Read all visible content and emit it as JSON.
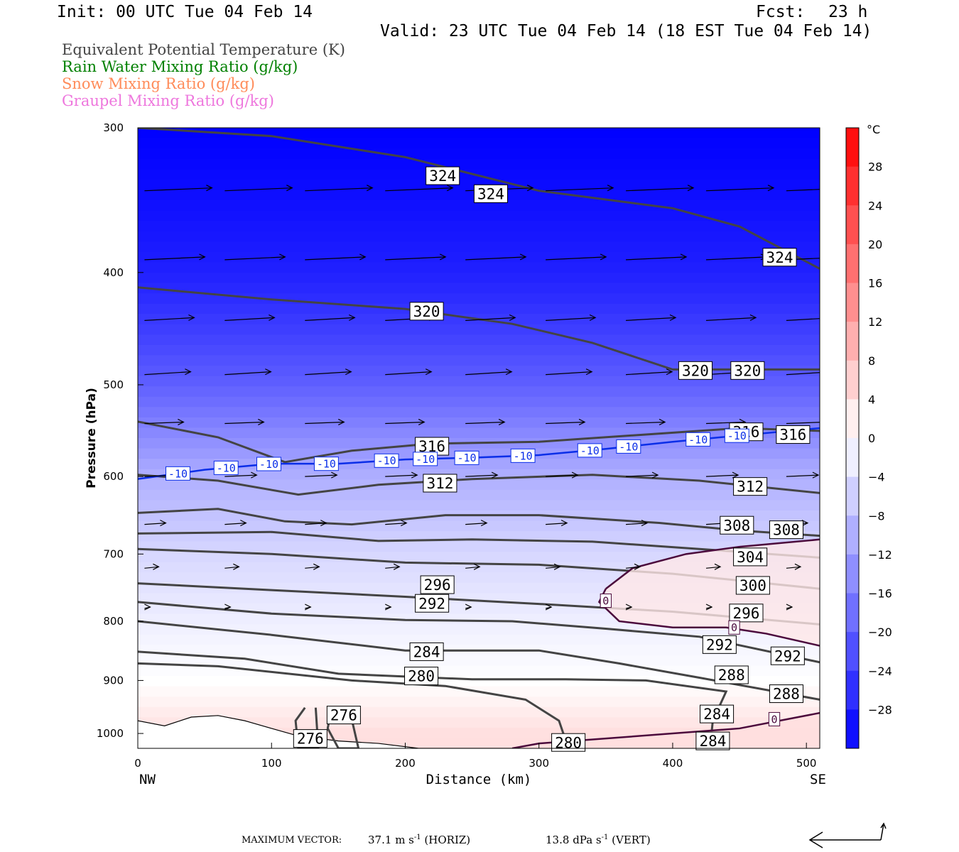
{
  "header": {
    "init": "Init: 00 UTC Tue 04 Feb 14",
    "fcst_label": "Fcst:",
    "fcst_value": "23 h",
    "valid": "Valid: 23 UTC Tue 04 Feb 14 (18 EST Tue 04 Feb 14)"
  },
  "legend": [
    {
      "label": "Equivalent Potential Temperature (K)",
      "color": "#444444"
    },
    {
      "label": "Rain Water Mixing Ratio (g/kg)",
      "color": "#008000"
    },
    {
      "label": "Snow Mixing Ratio (g/kg)",
      "color": "#ff8c5a"
    },
    {
      "label": "Graupel Mixing Ratio (g/kg)",
      "color": "#ee77dd"
    }
  ],
  "chart_data": {
    "type": "heatmap",
    "xlabel": "Distance (km)",
    "ylabel": "Pressure (hPa)",
    "xlim": [
      0,
      510
    ],
    "ylim": [
      1030,
      300
    ],
    "y_log_scale": true,
    "x_ticks": [
      0,
      100,
      200,
      300,
      400,
      500
    ],
    "y_ticks": [
      300,
      400,
      500,
      600,
      700,
      800,
      900,
      1000
    ],
    "x_end_labels": {
      "left": "NW",
      "right": "SE"
    },
    "colorbar": {
      "unit": "°C",
      "range": [
        -32,
        32
      ],
      "step": 4,
      "tick_labels": [
        28,
        24,
        20,
        16,
        12,
        8,
        4,
        0,
        -4,
        -8,
        -12,
        -16,
        -20,
        -24,
        -28
      ],
      "cold_color": "#0000ff",
      "zero_color": "#ffffff",
      "warm_color": "#ff0000"
    },
    "temperature_field_approx": [
      {
        "p": 300,
        "t": -32
      },
      {
        "p": 400,
        "t": -28
      },
      {
        "p": 500,
        "t": -20
      },
      {
        "p": 600,
        "t": -10
      },
      {
        "p": 700,
        "t": -5
      },
      {
        "p": 800,
        "t": -2
      },
      {
        "p": 900,
        "t": 0
      },
      {
        "p": 1000,
        "t": 4
      }
    ],
    "theta_e_contours": [
      {
        "value": 324,
        "points": [
          [
            0,
            300
          ],
          [
            100,
            305
          ],
          [
            200,
            318
          ],
          [
            300,
            340
          ],
          [
            400,
            352
          ],
          [
            450,
            365
          ],
          [
            510,
            397
          ]
        ]
      },
      {
        "value": 320,
        "points": [
          [
            0,
            412
          ],
          [
            100,
            422
          ],
          [
            200,
            430
          ],
          [
            280,
            443
          ],
          [
            340,
            460
          ],
          [
            400,
            485
          ],
          [
            510,
            485
          ]
        ]
      },
      {
        "value": 316,
        "points": [
          [
            0,
            538
          ],
          [
            60,
            555
          ],
          [
            110,
            583
          ],
          [
            160,
            570
          ],
          [
            220,
            562
          ],
          [
            300,
            560
          ],
          [
            380,
            552
          ],
          [
            450,
            545
          ],
          [
            510,
            548
          ]
        ]
      },
      {
        "value": 312,
        "points": [
          [
            0,
            598
          ],
          [
            60,
            605
          ],
          [
            120,
            622
          ],
          [
            180,
            610
          ],
          [
            250,
            603
          ],
          [
            340,
            598
          ],
          [
            420,
            605
          ],
          [
            510,
            620
          ]
        ]
      },
      {
        "value": 308,
        "points": [
          [
            0,
            645
          ],
          [
            60,
            640
          ],
          [
            110,
            656
          ],
          [
            160,
            660
          ],
          [
            230,
            648
          ],
          [
            300,
            648
          ],
          [
            390,
            658
          ],
          [
            450,
            668
          ],
          [
            510,
            675
          ]
        ]
      },
      {
        "value": 304,
        "points": [
          [
            0,
            672
          ],
          [
            100,
            670
          ],
          [
            180,
            682
          ],
          [
            250,
            680
          ],
          [
            340,
            683
          ],
          [
            420,
            693
          ],
          [
            510,
            705
          ]
        ]
      },
      {
        "value": 300,
        "points": [
          [
            0,
            693
          ],
          [
            100,
            700
          ],
          [
            200,
            712
          ],
          [
            300,
            715
          ],
          [
            400,
            728
          ],
          [
            510,
            750
          ]
        ]
      },
      {
        "value": 296,
        "points": [
          [
            0,
            742
          ],
          [
            100,
            752
          ],
          [
            200,
            762
          ],
          [
            300,
            773
          ],
          [
            400,
            785
          ],
          [
            510,
            805
          ]
        ]
      },
      {
        "value": 292,
        "points": [
          [
            0,
            770
          ],
          [
            100,
            788
          ],
          [
            200,
            798
          ],
          [
            280,
            800
          ],
          [
            350,
            812
          ],
          [
            420,
            825
          ],
          [
            510,
            868
          ]
        ]
      },
      {
        "value": 288,
        "points": [
          [
            0,
            800
          ],
          [
            100,
            822
          ],
          [
            200,
            848
          ],
          [
            300,
            848
          ],
          [
            360,
            870
          ],
          [
            420,
            895
          ],
          [
            510,
            935
          ]
        ]
      },
      {
        "value": 284,
        "points": [
          [
            0,
            850
          ],
          [
            80,
            862
          ],
          [
            150,
            888
          ],
          [
            250,
            898
          ],
          [
            320,
            898
          ],
          [
            380,
            900
          ],
          [
            440,
            920
          ],
          [
            430,
            975
          ],
          [
            428,
            1030
          ]
        ]
      },
      {
        "value": 280,
        "points": [
          [
            0,
            870
          ],
          [
            60,
            875
          ],
          [
            160,
            900
          ],
          [
            230,
            910
          ],
          [
            290,
            935
          ],
          [
            315,
            975
          ],
          [
            322,
            1030
          ]
        ]
      },
      {
        "value": 276,
        "points": [
          [
            125,
            950
          ],
          [
            118,
            975
          ],
          [
            120,
            1030
          ],
          [
            135,
            1030
          ],
          [
            133,
            950
          ]
        ]
      },
      {
        "value": 276,
        "points": [
          [
            145,
            950
          ],
          [
            142,
            990
          ],
          [
            150,
            1030
          ],
          [
            165,
            1030
          ],
          [
            158,
            950
          ]
        ]
      }
    ],
    "theta_e_labels": [
      {
        "value": 324,
        "x": 228,
        "p": 330
      },
      {
        "value": 324,
        "x": 264,
        "p": 342
      },
      {
        "value": 324,
        "x": 480,
        "p": 388
      },
      {
        "value": 320,
        "x": 216,
        "p": 432
      },
      {
        "value": 320,
        "x": 417,
        "p": 486
      },
      {
        "value": 320,
        "x": 456,
        "p": 486
      },
      {
        "value": 316,
        "x": 220,
        "p": 565
      },
      {
        "value": 316,
        "x": 455,
        "p": 549
      },
      {
        "value": 316,
        "x": 490,
        "p": 552
      },
      {
        "value": 312,
        "x": 226,
        "p": 608
      },
      {
        "value": 312,
        "x": 458,
        "p": 612
      },
      {
        "value": 308,
        "x": 448,
        "p": 661
      },
      {
        "value": 308,
        "x": 485,
        "p": 667
      },
      {
        "value": 304,
        "x": 458,
        "p": 704
      },
      {
        "value": 300,
        "x": 460,
        "p": 745
      },
      {
        "value": 296,
        "x": 224,
        "p": 744
      },
      {
        "value": 296,
        "x": 455,
        "p": 787
      },
      {
        "value": 292,
        "x": 220,
        "p": 772
      },
      {
        "value": 292,
        "x": 435,
        "p": 838
      },
      {
        "value": 292,
        "x": 486,
        "p": 857
      },
      {
        "value": 284,
        "x": 216,
        "p": 850
      },
      {
        "value": 280,
        "x": 212,
        "p": 892
      },
      {
        "value": 280,
        "x": 322,
        "p": 1018
      },
      {
        "value": 288,
        "x": 444,
        "p": 890
      },
      {
        "value": 288,
        "x": 485,
        "p": 924
      },
      {
        "value": 284,
        "x": 433,
        "p": 962
      },
      {
        "value": 284,
        "x": 430,
        "p": 1015
      },
      {
        "value": 276,
        "x": 154,
        "p": 964
      },
      {
        "value": 276,
        "x": 129,
        "p": 1010
      }
    ],
    "isotherm_minus10": {
      "value": -10,
      "color": "#0a2ee8",
      "points": [
        [
          0,
          603
        ],
        [
          50,
          592
        ],
        [
          100,
          585
        ],
        [
          150,
          585
        ],
        [
          200,
          580
        ],
        [
          250,
          578
        ],
        [
          300,
          575
        ],
        [
          350,
          568
        ],
        [
          400,
          560
        ],
        [
          450,
          553
        ],
        [
          510,
          545
        ]
      ],
      "label_xs": [
        30,
        66,
        98,
        141,
        186,
        215,
        246,
        288,
        338,
        367,
        419,
        448
      ]
    },
    "isotherm_zero": {
      "value": 0,
      "color": "#4b0a3c",
      "upper_points": [
        [
          350,
          750
        ],
        [
          345,
          770
        ],
        [
          360,
          800
        ],
        [
          400,
          810
        ],
        [
          440,
          810
        ],
        [
          470,
          820
        ],
        [
          510,
          840
        ]
      ],
      "upper_top": [
        [
          350,
          750
        ],
        [
          370,
          720
        ],
        [
          410,
          700
        ],
        [
          450,
          690
        ],
        [
          510,
          680
        ]
      ],
      "lower_points": [
        [
          280,
          1030
        ],
        [
          300,
          1020
        ],
        [
          350,
          1010
        ],
        [
          400,
          1000
        ],
        [
          450,
          990
        ],
        [
          510,
          960
        ]
      ],
      "labels": [
        {
          "x": 350,
          "p": 768
        },
        {
          "x": 446,
          "p": 810
        },
        {
          "x": 476,
          "p": 972
        }
      ]
    },
    "terrain_surface": [
      [
        0,
        975
      ],
      [
        20,
        985
      ],
      [
        40,
        968
      ],
      [
        60,
        965
      ],
      [
        80,
        975
      ],
      [
        100,
        990
      ],
      [
        120,
        1005
      ],
      [
        150,
        1015
      ],
      [
        180,
        1020
      ],
      [
        210,
        1030
      ],
      [
        260,
        1030
      ],
      [
        290,
        1030
      ]
    ],
    "max_vector": {
      "horiz": "37.1",
      "horiz_unit": "m s",
      "horiz_exp": "-1",
      "horiz_tag": "(HORIZ)",
      "vert": "13.8",
      "vert_unit": "dPa s",
      "vert_exp": "-1",
      "vert_tag": "(VERT)",
      "label": "MAXIMUM VECTOR:"
    }
  }
}
